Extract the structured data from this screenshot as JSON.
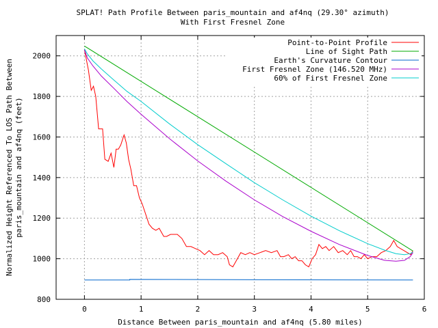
{
  "chart_data": {
    "type": "line",
    "title": "SPLAT! Path Profile Between paris_mountain and af4nq (29.30° azimuth)",
    "subtitle": "With First Fresnel Zone",
    "xlabel": "Distance Between paris_mountain and af4nq (5.80 miles)",
    "ylabel": "Normalized Height Referenced To LOS Path Between paris_mountain and af4nq (feet)",
    "ylabel_lines": [
      "Normalized Height Referenced To LOS Path Between",
      "paris_mountain and af4nq (feet)"
    ],
    "xlim": [
      -0.5,
      6
    ],
    "ylim": [
      800,
      2100
    ],
    "xticks": [
      0,
      1,
      2,
      3,
      4,
      5,
      6
    ],
    "yticks": [
      800,
      1000,
      1200,
      1400,
      1600,
      1800,
      2000
    ],
    "grid": true,
    "legend_position": "top-right",
    "series": [
      {
        "name": "Point-to-Point Profile",
        "color": "#ff0000",
        "x": [
          0,
          0.07,
          0.12,
          0.16,
          0.2,
          0.25,
          0.32,
          0.36,
          0.42,
          0.47,
          0.52,
          0.56,
          0.6,
          0.64,
          0.7,
          0.74,
          0.78,
          0.82,
          0.87,
          0.92,
          0.97,
          1.02,
          1.08,
          1.14,
          1.2,
          1.26,
          1.32,
          1.4,
          1.45,
          1.52,
          1.58,
          1.64,
          1.72,
          1.8,
          1.88,
          1.96,
          2.04,
          2.12,
          2.2,
          2.28,
          2.36,
          2.44,
          2.52,
          2.56,
          2.62,
          2.68,
          2.76,
          2.84,
          2.92,
          3.0,
          3.1,
          3.2,
          3.3,
          3.4,
          3.46,
          3.52,
          3.6,
          3.66,
          3.72,
          3.78,
          3.84,
          3.9,
          3.96,
          4.02,
          4.08,
          4.14,
          4.2,
          4.26,
          4.32,
          4.4,
          4.48,
          4.56,
          4.64,
          4.7,
          4.76,
          4.82,
          4.88,
          4.94,
          5.0,
          5.08,
          5.16,
          5.24,
          5.32,
          5.4,
          5.46,
          5.52,
          5.58,
          5.64,
          5.7,
          5.76,
          5.8
        ],
        "y": [
          2030,
          1930,
          1830,
          1850,
          1800,
          1640,
          1640,
          1490,
          1480,
          1520,
          1450,
          1540,
          1540,
          1560,
          1610,
          1570,
          1490,
          1440,
          1360,
          1360,
          1300,
          1270,
          1220,
          1170,
          1150,
          1140,
          1150,
          1110,
          1110,
          1120,
          1120,
          1120,
          1100,
          1060,
          1060,
          1050,
          1040,
          1020,
          1040,
          1020,
          1020,
          1030,
          1010,
          970,
          960,
          990,
          1030,
          1020,
          1030,
          1020,
          1030,
          1040,
          1030,
          1040,
          1010,
          1010,
          1020,
          1000,
          1010,
          990,
          990,
          970,
          960,
          1000,
          1020,
          1070,
          1050,
          1060,
          1040,
          1060,
          1030,
          1040,
          1020,
          1040,
          1010,
          1010,
          1000,
          1020,
          1000,
          1010,
          1010,
          1030,
          1040,
          1060,
          1090,
          1060,
          1050,
          1040,
          1030,
          1020,
          1040
        ]
      },
      {
        "name": "Line of Sight Path",
        "color": "#00aa00",
        "x": [
          0,
          5.8
        ],
        "y": [
          2048,
          1038
        ]
      },
      {
        "name": "Earth's Curvature Contour",
        "color": "#0066cc",
        "x": [
          0,
          0.8,
          0.8,
          5.8
        ],
        "y": [
          895,
          895,
          898,
          895
        ]
      },
      {
        "name": "First Fresnel Zone (146.520 MHz)",
        "color": "#aa00cc",
        "x": [
          0,
          0.05,
          0.15,
          0.3,
          0.5,
          0.75,
          1.0,
          1.5,
          2.0,
          2.5,
          3.0,
          3.5,
          4.0,
          4.5,
          5.0,
          5.3,
          5.5,
          5.65,
          5.75,
          5.8
        ],
        "y": [
          2030,
          1990,
          1950,
          1900,
          1845,
          1775,
          1712,
          1592,
          1482,
          1382,
          1290,
          1208,
          1135,
          1070,
          1016,
          992,
          988,
          992,
          1010,
          1030
        ]
      },
      {
        "name": "60% of First Fresnel Zone",
        "color": "#00cccc",
        "x": [
          0,
          0.05,
          0.15,
          0.3,
          0.5,
          0.75,
          1.0,
          1.5,
          2.0,
          2.5,
          3.0,
          3.5,
          4.0,
          4.5,
          5.0,
          5.3,
          5.5,
          5.65,
          5.75,
          5.8
        ],
        "y": [
          2035,
          2010,
          1975,
          1935,
          1885,
          1825,
          1775,
          1665,
          1562,
          1468,
          1375,
          1290,
          1210,
          1138,
          1074,
          1042,
          1025,
          1020,
          1025,
          1033
        ]
      }
    ]
  }
}
